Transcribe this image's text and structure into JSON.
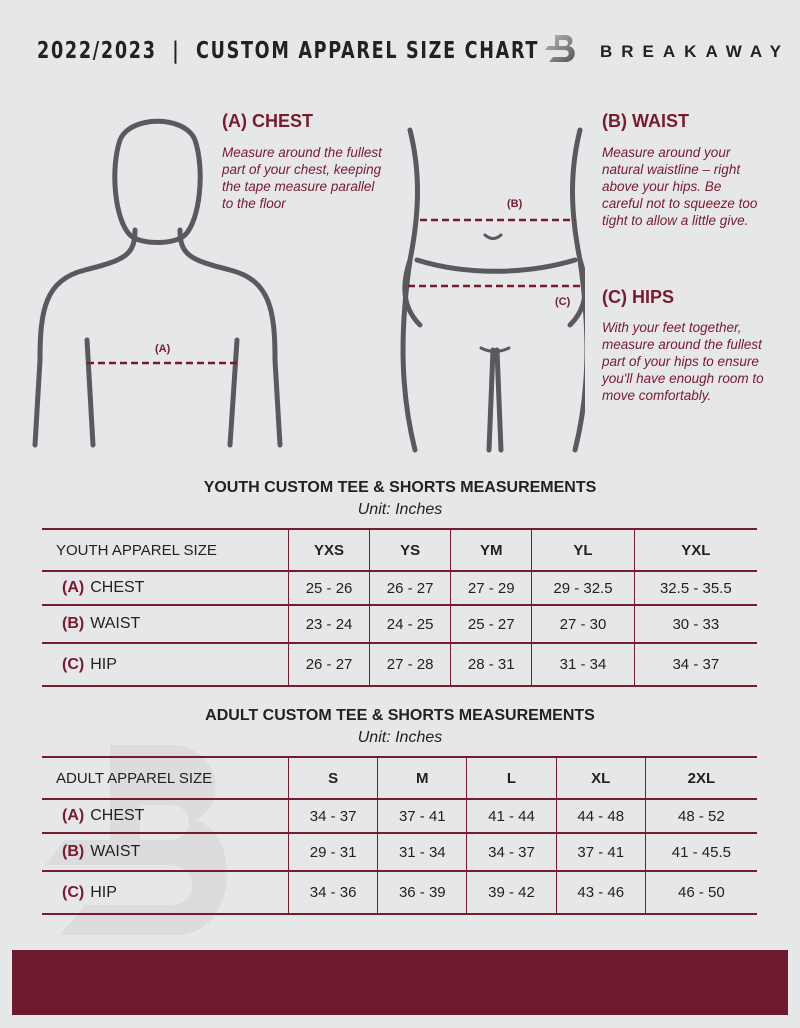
{
  "header": {
    "title": "2022/2023  |  CUSTOM APPAREL SIZE CHART",
    "brand": "BREAKAWAY"
  },
  "guide": {
    "chest": {
      "heading": "(A) CHEST",
      "text": "Measure around the fullest part of your chest, keeping the tape measure parallel to the floor",
      "marker": "(A)"
    },
    "waist": {
      "heading": "(B) WAIST",
      "text": "Measure around your natural waistline – right above your hips. Be careful not to squeeze too tight to allow a little give.",
      "marker": "(B)"
    },
    "hips": {
      "heading": "(C) HIPS",
      "text": "With your feet together, measure around the fullest part of your hips to ensure you'll have enough room to move comfortably.",
      "marker": "(C)"
    }
  },
  "youth": {
    "title": "YOUTH CUSTOM TEE & SHORTS MEASUREMENTS",
    "unit": "Unit: Inches",
    "header": [
      "YOUTH APPAREL SIZE",
      "YXS",
      "YS",
      "YM",
      "YL",
      "YXL"
    ],
    "rows": [
      {
        "key": "(A)",
        "label": "CHEST",
        "values": [
          "25 - 26",
          "26 - 27",
          "27 - 29",
          "29 - 32.5",
          "32.5 - 35.5"
        ]
      },
      {
        "key": "(B)",
        "label": "WAIST",
        "values": [
          "23 - 24",
          "24 - 25",
          "25 - 27",
          "27 - 30",
          "30 - 33"
        ]
      },
      {
        "key": "(C)",
        "label": "HIP",
        "values": [
          "26 - 27",
          "27 - 28",
          "28 - 31",
          "31 - 34",
          "34 - 37"
        ]
      }
    ]
  },
  "adult": {
    "title": "ADULT CUSTOM TEE & SHORTS MEASUREMENTS",
    "unit": "Unit: Inches",
    "header": [
      "ADULT APPAREL SIZE",
      "S",
      "M",
      "L",
      "XL",
      "2XL"
    ],
    "rows": [
      {
        "key": "(A)",
        "label": "CHEST",
        "values": [
          "34 - 37",
          "37 - 41",
          "41 - 44",
          "44 - 48",
          "48 - 52"
        ]
      },
      {
        "key": "(B)",
        "label": "WAIST",
        "values": [
          "29 - 31",
          "31 - 34",
          "34 - 37",
          "37 - 41",
          "41 - 45.5"
        ]
      },
      {
        "key": "(C)",
        "label": "HIP",
        "values": [
          "34 - 36",
          "36 - 39",
          "39 - 42",
          "43 - 46",
          "46 - 50"
        ]
      }
    ]
  },
  "colors": {
    "accent": "#7a1a2e",
    "background": "#e6e7e9",
    "footer": "#6e1a2e"
  }
}
